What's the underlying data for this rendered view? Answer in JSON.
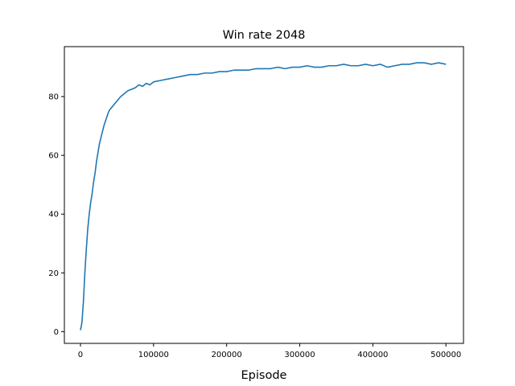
{
  "chart_data": {
    "type": "line",
    "title": "Win rate 2048",
    "xlabel": "Episode",
    "ylabel": "",
    "xlim": [
      -22000,
      524000
    ],
    "ylim": [
      -4,
      97
    ],
    "xticks": [
      0,
      100000,
      200000,
      300000,
      400000,
      500000
    ],
    "xtick_labels": [
      "0",
      "100000",
      "200000",
      "300000",
      "400000",
      "500000"
    ],
    "yticks": [
      0,
      20,
      40,
      60,
      80
    ],
    "ytick_labels": [
      "0",
      "20",
      "40",
      "60",
      "80"
    ],
    "grid": false,
    "legend": "none",
    "series": [
      {
        "color": "#1f77b4",
        "x": [
          0,
          2000,
          4000,
          6000,
          8000,
          10000,
          12000,
          14000,
          16000,
          18000,
          20000,
          22000,
          24000,
          26000,
          28000,
          30000,
          32000,
          34000,
          36000,
          38000,
          40000,
          45000,
          50000,
          55000,
          60000,
          65000,
          70000,
          75000,
          80000,
          85000,
          90000,
          95000,
          100000,
          110000,
          120000,
          130000,
          140000,
          150000,
          160000,
          170000,
          180000,
          190000,
          200000,
          210000,
          220000,
          230000,
          240000,
          250000,
          260000,
          270000,
          280000,
          290000,
          300000,
          310000,
          320000,
          330000,
          340000,
          350000,
          360000,
          370000,
          380000,
          390000,
          400000,
          410000,
          420000,
          430000,
          440000,
          450000,
          460000,
          470000,
          480000,
          490000,
          500000
        ],
        "y": [
          0.5,
          3,
          10,
          20,
          28,
          35,
          40,
          44,
          47,
          51,
          54,
          58,
          61,
          64,
          66,
          68,
          70,
          71.5,
          73,
          74.5,
          75.5,
          77,
          78.5,
          80,
          81,
          82,
          82.5,
          83,
          84,
          83.5,
          84.5,
          84,
          85,
          85.5,
          86,
          86.5,
          87,
          87.5,
          87.5,
          88,
          88,
          88.5,
          88.5,
          89,
          89,
          89,
          89.5,
          89.5,
          89.5,
          90,
          89.5,
          90,
          90,
          90.5,
          90,
          90,
          90.5,
          90.5,
          91,
          90.5,
          90.5,
          91,
          90.5,
          91,
          90,
          90.5,
          91,
          91,
          91.5,
          91.5,
          91,
          91.5,
          91
        ]
      }
    ]
  }
}
